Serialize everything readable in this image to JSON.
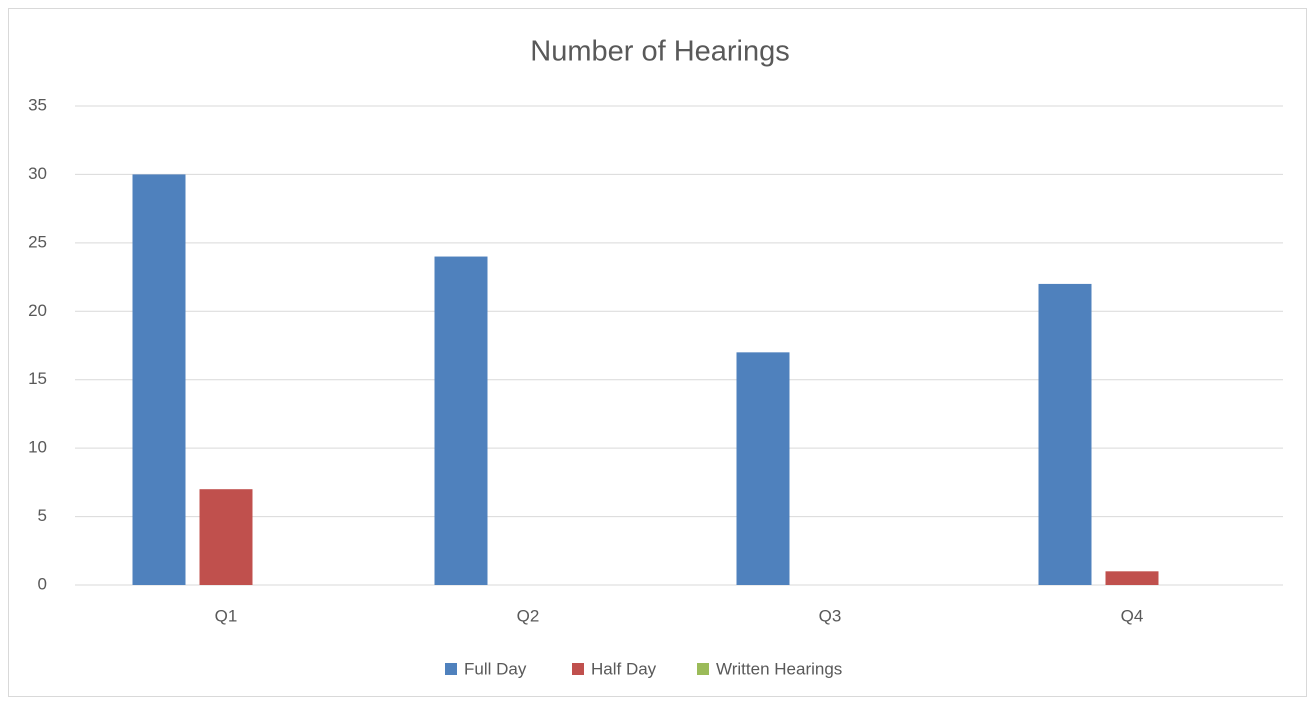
{
  "chart_data": {
    "type": "bar",
    "title": "Number of Hearings",
    "categories": [
      "Q1",
      "Q2",
      "Q3",
      "Q4"
    ],
    "series": [
      {
        "name": "Full Day",
        "color": "#4f81bd",
        "values": [
          30,
          24,
          17,
          22
        ]
      },
      {
        "name": "Half Day",
        "color": "#c0504d",
        "values": [
          7,
          0,
          0,
          1
        ]
      },
      {
        "name": "Written Hearings",
        "color": "#9bbb59",
        "values": [
          0,
          0,
          0,
          0
        ]
      }
    ],
    "ylim": [
      0,
      35
    ],
    "yticks": [
      0,
      5,
      10,
      15,
      20,
      25,
      30,
      35
    ],
    "grid": true,
    "legend": "bottom"
  }
}
